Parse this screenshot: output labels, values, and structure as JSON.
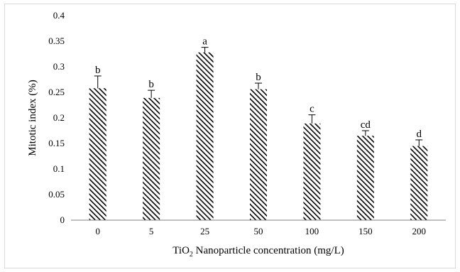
{
  "chart_data": {
    "type": "bar",
    "title": "",
    "xlabel_prefix": "TiO",
    "xlabel_sub": "2",
    "xlabel_suffix": " Nanoparticle concentration (mg/L)",
    "ylabel": "Mitotic index (%)",
    "categories": [
      "0",
      "5",
      "25",
      "50",
      "100",
      "150",
      "200"
    ],
    "values": [
      0.258,
      0.239,
      0.328,
      0.256,
      0.189,
      0.165,
      0.145
    ],
    "errors": [
      0.024,
      0.015,
      0.01,
      0.012,
      0.017,
      0.01,
      0.012
    ],
    "labels": [
      "b",
      "b",
      "a",
      "b",
      "c",
      "cd",
      "d"
    ],
    "ylim": [
      0,
      0.4
    ],
    "yticks": [
      "0",
      "0.05",
      "0.1",
      "0.15",
      "0.2",
      "0.25",
      "0.3",
      "0.35",
      "0.4"
    ],
    "grid": false,
    "legend": "none",
    "bar_pattern": "diagonal-hatch",
    "bar_color": "#000000"
  }
}
